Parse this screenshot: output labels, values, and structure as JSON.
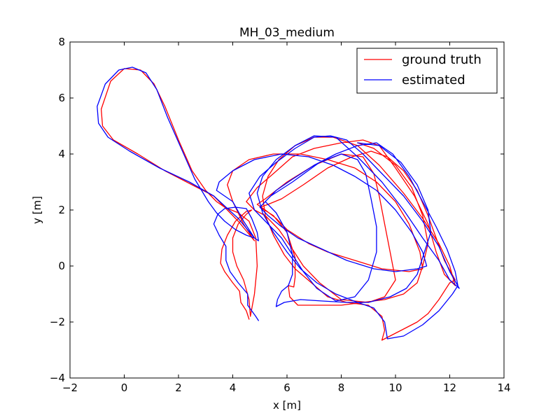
{
  "chart_data": {
    "type": "line",
    "title": "MH_03_medium",
    "xlabel": "x [m]",
    "ylabel": "y [m]",
    "xlim": [
      -2,
      14
    ],
    "ylim": [
      -4,
      8
    ],
    "xticks": [
      -2,
      0,
      2,
      4,
      6,
      8,
      10,
      12,
      14
    ],
    "yticks": [
      -4,
      -2,
      0,
      2,
      4,
      6,
      8
    ],
    "xtick_labels": [
      "−2",
      "0",
      "2",
      "4",
      "6",
      "8",
      "10",
      "12",
      "14"
    ],
    "ytick_labels": [
      "−4",
      "−2",
      "0",
      "2",
      "4",
      "6",
      "8"
    ],
    "grid": false,
    "legend_position": "top-right",
    "series": [
      {
        "name": "ground truth",
        "color": "#ff0000",
        "points": [
          [
            4.6,
            -1.9
          ],
          [
            4.5,
            -1.6
          ],
          [
            4.3,
            -1.3
          ],
          [
            4.25,
            -0.9
          ],
          [
            4.0,
            -0.6
          ],
          [
            3.7,
            -0.2
          ],
          [
            3.55,
            0.1
          ],
          [
            3.6,
            0.6
          ],
          [
            3.8,
            1.1
          ],
          [
            4.1,
            1.6
          ],
          [
            4.5,
            1.95
          ],
          [
            4.7,
            2.0
          ],
          [
            4.5,
            1.85
          ],
          [
            4.2,
            1.5
          ],
          [
            4.0,
            1.0
          ],
          [
            4.0,
            0.5
          ],
          [
            4.15,
            0.0
          ],
          [
            4.4,
            -0.5
          ],
          [
            4.6,
            -1.2
          ],
          [
            4.65,
            -1.8
          ],
          [
            4.8,
            -1.0
          ],
          [
            4.9,
            0.0
          ],
          [
            4.85,
            1.0
          ],
          [
            4.6,
            1.6
          ],
          [
            4.2,
            1.9
          ],
          [
            3.7,
            2.1
          ],
          [
            3.4,
            2.3
          ],
          [
            3.0,
            2.7
          ],
          [
            2.5,
            3.4
          ],
          [
            2.0,
            4.5
          ],
          [
            1.5,
            5.7
          ],
          [
            1.1,
            6.5
          ],
          [
            0.6,
            7.0
          ],
          [
            0.0,
            7.05
          ],
          [
            -0.5,
            6.6
          ],
          [
            -0.85,
            5.6
          ],
          [
            -0.8,
            5.0
          ],
          [
            -0.4,
            4.5
          ],
          [
            0.5,
            4.0
          ],
          [
            1.5,
            3.4
          ],
          [
            2.5,
            2.9
          ],
          [
            3.3,
            2.5
          ],
          [
            4.2,
            1.6
          ],
          [
            4.8,
            0.9
          ],
          [
            4.4,
            1.5
          ],
          [
            4.0,
            2.3
          ],
          [
            3.8,
            2.9
          ],
          [
            4.0,
            3.4
          ],
          [
            4.6,
            3.8
          ],
          [
            5.5,
            4.0
          ],
          [
            6.5,
            4.0
          ],
          [
            7.5,
            3.8
          ],
          [
            8.5,
            3.5
          ],
          [
            9.3,
            3.0
          ],
          [
            10.0,
            2.3
          ],
          [
            10.5,
            1.5
          ],
          [
            10.9,
            0.5
          ],
          [
            11.0,
            -0.1
          ],
          [
            10.5,
            -0.2
          ],
          [
            9.5,
            -0.1
          ],
          [
            8.5,
            0.2
          ],
          [
            7.5,
            0.5
          ],
          [
            6.8,
            0.8
          ],
          [
            6.0,
            1.3
          ],
          [
            5.6,
            1.7
          ],
          [
            5.2,
            2.0
          ],
          [
            4.9,
            2.2
          ],
          [
            5.2,
            2.4
          ],
          [
            6.0,
            3.0
          ],
          [
            7.0,
            3.6
          ],
          [
            8.0,
            4.0
          ],
          [
            8.8,
            3.9
          ],
          [
            9.2,
            3.3
          ],
          [
            9.4,
            2.5
          ],
          [
            9.6,
            1.5
          ],
          [
            9.8,
            0.5
          ],
          [
            10.0,
            -0.5
          ],
          [
            9.6,
            -1.1
          ],
          [
            9.0,
            -1.3
          ],
          [
            8.0,
            -1.2
          ],
          [
            7.2,
            -0.6
          ],
          [
            6.6,
            0.0
          ],
          [
            6.2,
            0.6
          ],
          [
            5.7,
            1.3
          ],
          [
            5.2,
            1.8
          ],
          [
            4.8,
            2.0
          ],
          [
            4.5,
            2.3
          ],
          [
            4.9,
            2.8
          ],
          [
            5.5,
            3.3
          ],
          [
            6.2,
            3.9
          ],
          [
            7.0,
            4.2
          ],
          [
            8.0,
            4.4
          ],
          [
            8.8,
            4.5
          ],
          [
            9.4,
            4.3
          ],
          [
            10.0,
            3.5
          ],
          [
            10.7,
            2.5
          ],
          [
            11.2,
            1.5
          ],
          [
            11.5,
            0.5
          ],
          [
            11.8,
            -0.3
          ],
          [
            12.2,
            -0.7
          ],
          [
            12.0,
            0.0
          ],
          [
            11.6,
            0.8
          ],
          [
            11.0,
            1.7
          ],
          [
            10.3,
            2.6
          ],
          [
            9.4,
            3.6
          ],
          [
            8.6,
            4.3
          ],
          [
            7.7,
            4.6
          ],
          [
            7.0,
            4.6
          ],
          [
            6.3,
            4.3
          ],
          [
            5.7,
            3.8
          ],
          [
            5.3,
            3.2
          ],
          [
            5.1,
            2.5
          ],
          [
            5.2,
            1.8
          ],
          [
            5.5,
            1.1
          ],
          [
            5.9,
            0.4
          ],
          [
            6.3,
            -0.1
          ],
          [
            6.9,
            -0.6
          ],
          [
            7.5,
            -1.1
          ],
          [
            8.2,
            -1.3
          ],
          [
            9.0,
            -1.4
          ],
          [
            9.5,
            -1.8
          ],
          [
            9.6,
            -2.3
          ],
          [
            9.5,
            -2.65
          ],
          [
            10.2,
            -2.3
          ],
          [
            10.8,
            -2.0
          ],
          [
            11.2,
            -1.7
          ],
          [
            11.6,
            -1.2
          ],
          [
            12.0,
            -0.6
          ],
          [
            12.2,
            -0.5
          ],
          [
            11.8,
            0.2
          ],
          [
            11.5,
            1.0
          ],
          [
            11.2,
            1.8
          ],
          [
            10.8,
            2.7
          ],
          [
            10.3,
            3.4
          ],
          [
            9.7,
            3.9
          ],
          [
            9.1,
            4.1
          ],
          [
            8.4,
            3.9
          ],
          [
            7.5,
            3.5
          ],
          [
            6.6,
            2.9
          ],
          [
            5.8,
            2.4
          ],
          [
            5.3,
            2.2
          ],
          [
            5.0,
            2.1
          ],
          [
            5.5,
            1.8
          ],
          [
            6.0,
            1.2
          ],
          [
            6.3,
            0.3
          ],
          [
            6.3,
            -0.4
          ],
          [
            6.25,
            -0.75
          ],
          [
            6.05,
            -0.7
          ],
          [
            6.1,
            -1.1
          ],
          [
            6.3,
            -1.3
          ],
          [
            6.4,
            -1.4
          ],
          [
            7.0,
            -1.4
          ],
          [
            8.0,
            -1.4
          ],
          [
            8.8,
            -1.3
          ],
          [
            9.6,
            -1.2
          ],
          [
            10.3,
            -1.0
          ],
          [
            10.8,
            -0.6
          ],
          [
            11.0,
            0.0
          ],
          [
            11.2,
            0.8
          ],
          [
            11.0,
            1.8
          ],
          [
            10.6,
            2.8
          ],
          [
            10.0,
            3.6
          ],
          [
            9.2,
            4.2
          ],
          [
            8.6,
            4.4
          ]
        ]
      },
      {
        "name": "estimated",
        "color": "#0000ff",
        "points": [
          [
            4.95,
            -1.95
          ],
          [
            4.85,
            -1.8
          ],
          [
            4.55,
            -1.4
          ],
          [
            4.55,
            -1.0
          ],
          [
            4.2,
            -0.6
          ],
          [
            3.9,
            -0.2
          ],
          [
            3.75,
            0.2
          ],
          [
            3.75,
            0.7
          ],
          [
            3.5,
            1.1
          ],
          [
            3.3,
            1.5
          ],
          [
            3.45,
            1.85
          ],
          [
            3.7,
            2.05
          ],
          [
            4.1,
            2.1
          ],
          [
            4.5,
            2.05
          ],
          [
            4.7,
            1.7
          ],
          [
            4.9,
            1.2
          ],
          [
            4.95,
            0.9
          ],
          [
            4.8,
            1.0
          ],
          [
            4.5,
            1.1
          ],
          [
            4.1,
            1.3
          ],
          [
            3.7,
            1.6
          ],
          [
            3.4,
            1.9
          ],
          [
            3.1,
            2.3
          ],
          [
            2.6,
            3.1
          ],
          [
            2.1,
            4.2
          ],
          [
            1.6,
            5.3
          ],
          [
            1.2,
            6.3
          ],
          [
            0.8,
            6.9
          ],
          [
            0.3,
            7.1
          ],
          [
            -0.2,
            7.0
          ],
          [
            -0.7,
            6.5
          ],
          [
            -1.0,
            5.7
          ],
          [
            -0.95,
            5.1
          ],
          [
            -0.6,
            4.6
          ],
          [
            0.2,
            4.1
          ],
          [
            1.3,
            3.5
          ],
          [
            2.4,
            3.0
          ],
          [
            3.3,
            2.5
          ],
          [
            4.2,
            1.7
          ],
          [
            4.8,
            1.0
          ],
          [
            4.4,
            1.6
          ],
          [
            4.0,
            2.3
          ],
          [
            3.4,
            2.7
          ],
          [
            3.5,
            3.0
          ],
          [
            4.0,
            3.4
          ],
          [
            4.8,
            3.8
          ],
          [
            5.8,
            4.0
          ],
          [
            6.8,
            3.9
          ],
          [
            7.7,
            3.6
          ],
          [
            8.5,
            3.2
          ],
          [
            9.3,
            2.7
          ],
          [
            10.0,
            2.0
          ],
          [
            10.6,
            1.2
          ],
          [
            11.0,
            0.5
          ],
          [
            11.15,
            0.0
          ],
          [
            10.8,
            -0.1
          ],
          [
            10.0,
            -0.2
          ],
          [
            9.2,
            -0.1
          ],
          [
            8.2,
            0.2
          ],
          [
            7.3,
            0.6
          ],
          [
            6.4,
            1.0
          ],
          [
            5.8,
            1.4
          ],
          [
            5.3,
            1.8
          ],
          [
            5.0,
            2.1
          ],
          [
            5.4,
            2.5
          ],
          [
            6.2,
            3.0
          ],
          [
            7.2,
            3.7
          ],
          [
            8.0,
            4.0
          ],
          [
            8.6,
            3.8
          ],
          [
            8.9,
            3.3
          ],
          [
            9.1,
            2.4
          ],
          [
            9.3,
            1.4
          ],
          [
            9.3,
            0.5
          ],
          [
            9.0,
            -0.5
          ],
          [
            8.5,
            -1.1
          ],
          [
            7.8,
            -1.25
          ],
          [
            7.1,
            -0.8
          ],
          [
            6.6,
            -0.2
          ],
          [
            6.2,
            0.4
          ],
          [
            5.8,
            1.0
          ],
          [
            5.2,
            1.6
          ],
          [
            4.8,
            2.0
          ],
          [
            4.6,
            2.6
          ],
          [
            5.0,
            3.2
          ],
          [
            5.6,
            3.7
          ],
          [
            6.3,
            4.2
          ],
          [
            7.0,
            4.6
          ],
          [
            7.6,
            4.65
          ],
          [
            8.2,
            4.5
          ],
          [
            8.8,
            4.0
          ],
          [
            9.5,
            3.3
          ],
          [
            10.3,
            2.5
          ],
          [
            11.0,
            1.6
          ],
          [
            11.6,
            0.7
          ],
          [
            12.0,
            -0.2
          ],
          [
            12.35,
            -0.8
          ],
          [
            12.0,
            -0.5
          ],
          [
            11.6,
            0.2
          ],
          [
            11.0,
            1.0
          ],
          [
            10.3,
            2.0
          ],
          [
            9.5,
            3.0
          ],
          [
            8.6,
            3.9
          ],
          [
            7.8,
            4.6
          ],
          [
            7.0,
            4.65
          ],
          [
            6.3,
            4.3
          ],
          [
            5.6,
            3.8
          ],
          [
            5.1,
            3.2
          ],
          [
            4.9,
            2.6
          ],
          [
            5.1,
            1.9
          ],
          [
            5.5,
            1.2
          ],
          [
            6.0,
            0.5
          ],
          [
            6.5,
            -0.1
          ],
          [
            7.1,
            -0.6
          ],
          [
            7.8,
            -1.0
          ],
          [
            8.6,
            -1.3
          ],
          [
            9.2,
            -1.5
          ],
          [
            9.6,
            -2.0
          ],
          [
            9.7,
            -2.6
          ],
          [
            10.3,
            -2.5
          ],
          [
            11.0,
            -2.1
          ],
          [
            11.6,
            -1.6
          ],
          [
            12.1,
            -1.0
          ],
          [
            12.3,
            -0.7
          ],
          [
            12.2,
            -0.2
          ],
          [
            11.9,
            0.6
          ],
          [
            11.5,
            1.4
          ],
          [
            11.0,
            2.3
          ],
          [
            10.5,
            3.2
          ],
          [
            9.9,
            4.0
          ],
          [
            9.3,
            4.4
          ],
          [
            8.6,
            4.3
          ],
          [
            7.8,
            4.0
          ],
          [
            7.0,
            3.6
          ],
          [
            6.2,
            3.1
          ],
          [
            5.6,
            2.7
          ],
          [
            5.2,
            2.3
          ],
          [
            5.6,
            1.9
          ],
          [
            6.0,
            1.2
          ],
          [
            6.2,
            0.4
          ],
          [
            6.2,
            -0.3
          ],
          [
            6.05,
            -0.7
          ],
          [
            5.8,
            -0.9
          ],
          [
            5.65,
            -1.2
          ],
          [
            5.6,
            -1.45
          ],
          [
            5.9,
            -1.3
          ],
          [
            6.5,
            -1.2
          ],
          [
            7.3,
            -1.25
          ],
          [
            8.2,
            -1.3
          ],
          [
            9.0,
            -1.3
          ],
          [
            9.8,
            -1.1
          ],
          [
            10.4,
            -0.8
          ],
          [
            10.8,
            -0.3
          ],
          [
            11.0,
            0.3
          ],
          [
            11.3,
            1.2
          ],
          [
            11.2,
            2.0
          ],
          [
            10.8,
            2.9
          ],
          [
            10.2,
            3.7
          ],
          [
            9.4,
            4.3
          ],
          [
            8.6,
            4.4
          ]
        ]
      }
    ]
  }
}
